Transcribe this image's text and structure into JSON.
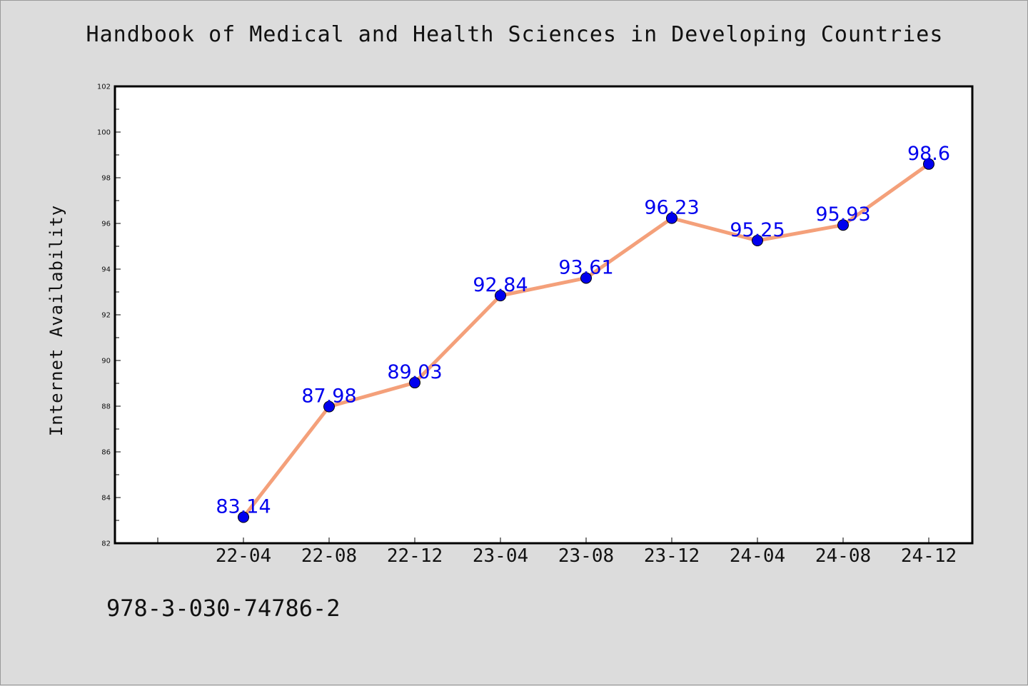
{
  "title": "Handbook of Medical and Health Sciences in Developing Countries",
  "footer_text": "978-3-030-74786-2",
  "chart_data": {
    "type": "line",
    "title": "Handbook of Medical and Health Sciences in Developing Countries",
    "xlabel": "",
    "ylabel": "Internet Availability",
    "categories": [
      "22-04",
      "22-08",
      "22-12",
      "23-04",
      "23-08",
      "23-12",
      "24-04",
      "24-08",
      "24-12"
    ],
    "series": [
      {
        "values": [
          83.14,
          87.98,
          89.03,
          92.84,
          93.61,
          96.23,
          95.25,
          95.93,
          98.6
        ],
        "data_labels": [
          "83.14",
          "87.98",
          "89.03",
          "92.84",
          "93.61",
          "96.23",
          "95.25",
          "95.93",
          "98.6"
        ],
        "line_color": "#f4a07a",
        "marker_color": "#0000ee",
        "label_color": "#0000ee"
      }
    ],
    "ylim": [
      82,
      102
    ],
    "y_ticks": [
      "82",
      "84",
      "86",
      "88",
      "90",
      "92",
      "94",
      "96",
      "98",
      "100",
      "102"
    ],
    "grid": false,
    "legend": "none"
  }
}
